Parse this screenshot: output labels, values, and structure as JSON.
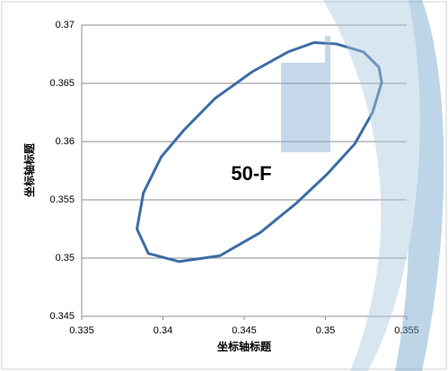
{
  "chart_data": {
    "type": "line",
    "annotation": "50-F",
    "x_label": "坐标轴标题",
    "y_label": "坐标轴标题",
    "x": [
      0.35069,
      0.35235,
      0.35329,
      0.35346,
      0.3529,
      0.3518,
      0.3501,
      0.3482,
      0.346,
      0.3435,
      0.341,
      0.3391,
      0.3384,
      0.3388,
      0.3399,
      0.3413,
      0.3432,
      0.3455,
      0.3477,
      0.3493
    ],
    "values": [
      0.36838,
      0.36769,
      0.36638,
      0.36508,
      0.3625,
      0.3598,
      0.3572,
      0.3547,
      0.3522,
      0.3502,
      0.3497,
      0.3504,
      0.3525,
      0.3556,
      0.3587,
      0.361,
      0.3637,
      0.366,
      0.3677,
      0.3685
    ],
    "color": "#3d6ba6",
    "closed": true,
    "xlim": [
      0.335,
      0.355
    ],
    "xticks": [
      0.335,
      0.34,
      0.345,
      0.35,
      0.355
    ],
    "ylim": [
      0.345,
      0.37
    ],
    "yticks": [
      0.345,
      0.35,
      0.355,
      0.36,
      0.365,
      0.37
    ],
    "grid": true
  }
}
